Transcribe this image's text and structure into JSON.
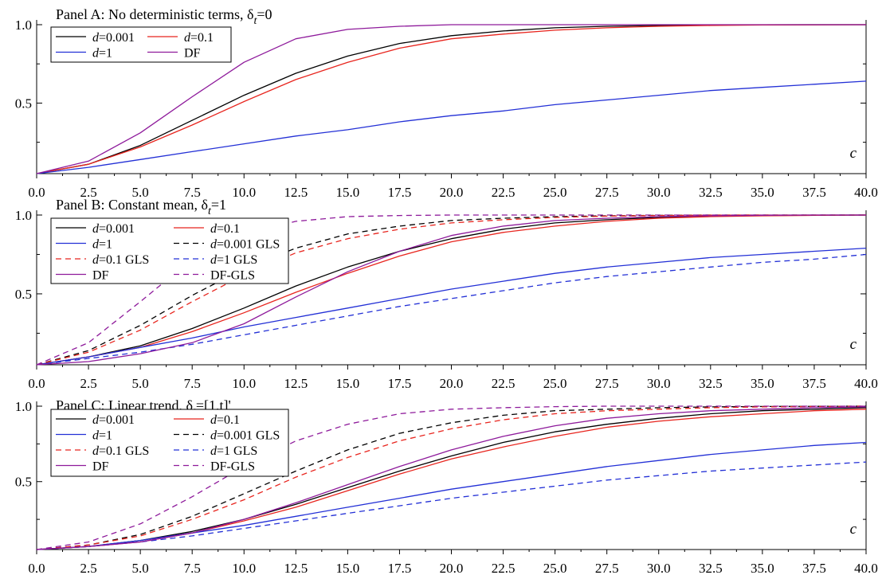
{
  "chart_data": [
    {
      "type": "line",
      "title": "Panel A: No deterministic terms, δ",
      "title_sub": "t",
      "title_tail": "=0",
      "xlabel": "c",
      "ylabel": "",
      "xlim": [
        0,
        40
      ],
      "ylim": [
        0.05,
        1.0
      ],
      "x_ticks": [
        "0.0",
        "2.5",
        "5.0",
        "7.5",
        "10.0",
        "12.5",
        "15.0",
        "17.5",
        "20.0",
        "22.5",
        "25.0",
        "27.5",
        "30.0",
        "32.5",
        "35.0",
        "37.5",
        "40.0"
      ],
      "y_ticks": [
        "0.5",
        "1.0"
      ],
      "x": [
        0,
        2.5,
        5,
        7.5,
        10,
        12.5,
        15,
        17.5,
        20,
        22.5,
        25,
        27.5,
        30,
        32.5,
        35,
        37.5,
        40
      ],
      "series": [
        {
          "name": "d=0.001",
          "italic": "d",
          "rest": "=0.001",
          "color": "#000000",
          "dash": "solid",
          "values": [
            0.05,
            0.11,
            0.23,
            0.39,
            0.55,
            0.69,
            0.8,
            0.88,
            0.93,
            0.96,
            0.98,
            0.99,
            0.995,
            0.998,
            0.999,
            1.0,
            1.0
          ]
        },
        {
          "name": "d=0.1",
          "italic": "d",
          "rest": "=0.1",
          "color": "#e8251e",
          "dash": "solid",
          "values": [
            0.05,
            0.11,
            0.22,
            0.36,
            0.51,
            0.65,
            0.76,
            0.85,
            0.91,
            0.94,
            0.965,
            0.98,
            0.99,
            0.995,
            0.998,
            0.999,
            1.0
          ]
        },
        {
          "name": "d=1",
          "italic": "d",
          "rest": "=1",
          "color": "#2330d6",
          "dash": "solid",
          "values": [
            0.05,
            0.09,
            0.14,
            0.19,
            0.24,
            0.29,
            0.33,
            0.38,
            0.42,
            0.45,
            0.49,
            0.52,
            0.55,
            0.58,
            0.6,
            0.62,
            0.64
          ]
        },
        {
          "name": "DF",
          "italic": "",
          "rest": "DF",
          "color": "#8e1a9b",
          "dash": "solid",
          "values": [
            0.05,
            0.13,
            0.31,
            0.54,
            0.76,
            0.91,
            0.97,
            0.99,
            1.0,
            1.0,
            1.0,
            1.0,
            1.0,
            1.0,
            1.0,
            1.0,
            1.0
          ]
        }
      ]
    },
    {
      "type": "line",
      "title": "Panel B: Constant mean,  δ",
      "title_sub": "t",
      "title_tail": "=1",
      "xlabel": "c",
      "ylabel": "",
      "xlim": [
        0,
        40
      ],
      "ylim": [
        0.05,
        1.0
      ],
      "x_ticks": [
        "0.0",
        "2.5",
        "5.0",
        "7.5",
        "10.0",
        "12.5",
        "15.0",
        "17.5",
        "20.0",
        "22.5",
        "25.0",
        "27.5",
        "30.0",
        "32.5",
        "35.0",
        "37.5",
        "40.0"
      ],
      "y_ticks": [
        "0.5",
        "1.0"
      ],
      "x": [
        0,
        2.5,
        5,
        7.5,
        10,
        12.5,
        15,
        17.5,
        20,
        22.5,
        25,
        27.5,
        30,
        32.5,
        35,
        37.5,
        40
      ],
      "series": [
        {
          "name": "d=0.001",
          "italic": "d",
          "rest": "=0.001",
          "color": "#000000",
          "dash": "solid",
          "values": [
            0.05,
            0.1,
            0.17,
            0.28,
            0.41,
            0.55,
            0.67,
            0.77,
            0.85,
            0.91,
            0.95,
            0.97,
            0.985,
            0.993,
            0.997,
            0.999,
            1.0
          ]
        },
        {
          "name": "d=0.1",
          "italic": "d",
          "rest": "=0.1",
          "color": "#e8251e",
          "dash": "solid",
          "values": [
            0.05,
            0.1,
            0.16,
            0.26,
            0.38,
            0.51,
            0.63,
            0.74,
            0.83,
            0.89,
            0.93,
            0.96,
            0.98,
            0.99,
            0.995,
            0.998,
            1.0
          ]
        },
        {
          "name": "d=1",
          "italic": "d",
          "rest": "=1",
          "color": "#2330d6",
          "dash": "solid",
          "values": [
            0.05,
            0.1,
            0.16,
            0.22,
            0.29,
            0.35,
            0.41,
            0.47,
            0.53,
            0.58,
            0.63,
            0.67,
            0.7,
            0.73,
            0.75,
            0.77,
            0.79
          ]
        },
        {
          "name": "d=0.001 GLS",
          "italic": "d",
          "rest": "=0.001 GLS",
          "color": "#000000",
          "dash": "dashed",
          "values": [
            0.05,
            0.14,
            0.3,
            0.49,
            0.66,
            0.79,
            0.88,
            0.93,
            0.965,
            0.98,
            0.99,
            0.995,
            0.998,
            1.0,
            1.0,
            1.0,
            1.0
          ]
        },
        {
          "name": "d=0.1 GLS",
          "italic": "d",
          "rest": "=0.1 GLS",
          "color": "#e8251e",
          "dash": "dashed",
          "values": [
            0.05,
            0.13,
            0.27,
            0.45,
            0.62,
            0.76,
            0.85,
            0.91,
            0.95,
            0.97,
            0.985,
            0.993,
            0.997,
            0.999,
            1.0,
            1.0,
            1.0
          ]
        },
        {
          "name": "d=1 GLS",
          "italic": "d",
          "rest": "=1 GLS",
          "color": "#2330d6",
          "dash": "dashed",
          "values": [
            0.05,
            0.09,
            0.13,
            0.18,
            0.24,
            0.3,
            0.36,
            0.42,
            0.47,
            0.52,
            0.57,
            0.61,
            0.64,
            0.67,
            0.7,
            0.72,
            0.75
          ]
        },
        {
          "name": "DF",
          "italic": "",
          "rest": "DF",
          "color": "#8e1a9b",
          "dash": "solid",
          "values": [
            0.05,
            0.07,
            0.12,
            0.19,
            0.31,
            0.48,
            0.64,
            0.77,
            0.87,
            0.93,
            0.965,
            0.98,
            0.99,
            0.995,
            0.998,
            1.0,
            1.0
          ]
        },
        {
          "name": "DF-GLS",
          "italic": "",
          "rest": "DF-GLS",
          "color": "#8e1a9b",
          "dash": "dashed",
          "values": [
            0.05,
            0.19,
            0.45,
            0.72,
            0.88,
            0.96,
            0.99,
            0.997,
            1.0,
            1.0,
            1.0,
            1.0,
            1.0,
            1.0,
            1.0,
            1.0,
            1.0
          ]
        }
      ]
    },
    {
      "type": "line",
      "title": "Panel C: Linear trend,  δ",
      "title_sub": "t",
      "title_tail": "=[1,t]'",
      "xlabel": "c",
      "ylabel": "",
      "xlim": [
        0,
        40
      ],
      "ylim": [
        0.05,
        1.0
      ],
      "x_ticks": [
        "0.0",
        "2.5",
        "5.0",
        "7.5",
        "10.0",
        "12.5",
        "15.0",
        "17.5",
        "20.0",
        "22.5",
        "25.0",
        "27.5",
        "30.0",
        "32.5",
        "35.0",
        "37.5",
        "40.0"
      ],
      "y_ticks": [
        "0.5",
        "1.0"
      ],
      "x": [
        0,
        2.5,
        5,
        7.5,
        10,
        12.5,
        15,
        17.5,
        20,
        22.5,
        25,
        27.5,
        30,
        32.5,
        35,
        37.5,
        40
      ],
      "series": [
        {
          "name": "d=0.001",
          "italic": "d",
          "rest": "=0.001",
          "color": "#000000",
          "dash": "solid",
          "values": [
            0.05,
            0.07,
            0.11,
            0.17,
            0.25,
            0.35,
            0.46,
            0.57,
            0.67,
            0.76,
            0.83,
            0.88,
            0.92,
            0.95,
            0.97,
            0.98,
            0.99
          ]
        },
        {
          "name": "d=0.1",
          "italic": "d",
          "rest": "=0.1",
          "color": "#e8251e",
          "dash": "solid",
          "values": [
            0.05,
            0.07,
            0.1,
            0.16,
            0.24,
            0.33,
            0.44,
            0.55,
            0.65,
            0.73,
            0.8,
            0.86,
            0.9,
            0.93,
            0.95,
            0.97,
            0.98
          ]
        },
        {
          "name": "d=1",
          "italic": "d",
          "rest": "=1",
          "color": "#2330d6",
          "dash": "solid",
          "values": [
            0.05,
            0.07,
            0.11,
            0.16,
            0.21,
            0.27,
            0.33,
            0.39,
            0.45,
            0.5,
            0.55,
            0.6,
            0.64,
            0.68,
            0.71,
            0.74,
            0.76
          ]
        },
        {
          "name": "d=0.001 GLS",
          "italic": "d",
          "rest": "=0.001 GLS",
          "color": "#000000",
          "dash": "dashed",
          "values": [
            0.05,
            0.08,
            0.15,
            0.27,
            0.42,
            0.57,
            0.71,
            0.82,
            0.89,
            0.94,
            0.97,
            0.98,
            0.99,
            0.995,
            0.998,
            0.999,
            1.0
          ]
        },
        {
          "name": "d=0.1 GLS",
          "italic": "d",
          "rest": "=0.1 GLS",
          "color": "#e8251e",
          "dash": "dashed",
          "values": [
            0.05,
            0.08,
            0.14,
            0.25,
            0.38,
            0.53,
            0.66,
            0.77,
            0.85,
            0.91,
            0.95,
            0.97,
            0.98,
            0.99,
            0.995,
            0.998,
            1.0
          ]
        },
        {
          "name": "d=1 GLS",
          "italic": "d",
          "rest": "=1 GLS",
          "color": "#2330d6",
          "dash": "dashed",
          "values": [
            0.05,
            0.07,
            0.1,
            0.14,
            0.19,
            0.24,
            0.29,
            0.34,
            0.39,
            0.43,
            0.47,
            0.51,
            0.54,
            0.57,
            0.59,
            0.61,
            0.63
          ]
        },
        {
          "name": "DF",
          "italic": "",
          "rest": "DF",
          "color": "#8e1a9b",
          "dash": "solid",
          "values": [
            0.05,
            0.07,
            0.1,
            0.16,
            0.25,
            0.36,
            0.48,
            0.6,
            0.71,
            0.8,
            0.87,
            0.92,
            0.95,
            0.97,
            0.98,
            0.99,
            0.995
          ]
        },
        {
          "name": "DF-GLS",
          "italic": "",
          "rest": "DF-GLS",
          "color": "#8e1a9b",
          "dash": "dashed",
          "values": [
            0.05,
            0.1,
            0.22,
            0.4,
            0.6,
            0.77,
            0.88,
            0.95,
            0.98,
            0.99,
            0.997,
            1.0,
            1.0,
            1.0,
            1.0,
            1.0,
            1.0
          ]
        }
      ]
    }
  ]
}
